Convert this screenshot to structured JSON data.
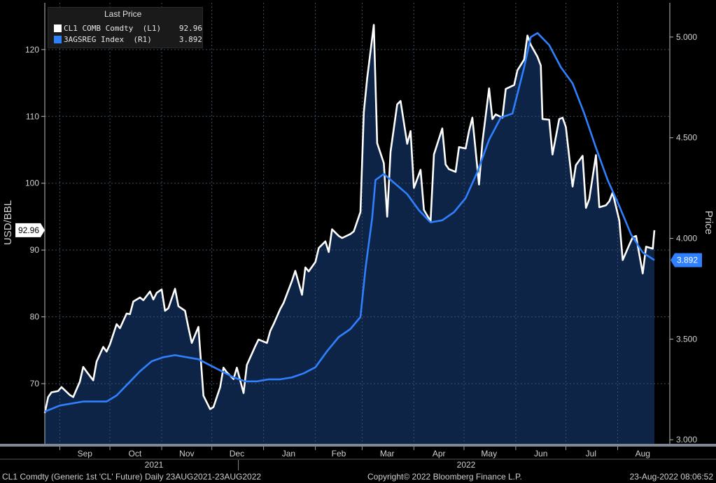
{
  "legend": {
    "title": "Last Price",
    "items": [
      {
        "name": "CL1 COMB Comdty  (L1)",
        "value": "92.96",
        "color": "#ffffff"
      },
      {
        "name": "3AGSREG Index  (R1)",
        "value": "3.892",
        "color": "#2f80ff"
      }
    ]
  },
  "footer": {
    "left": "CL1 Comdty (Generic 1st 'CL' Future)  Daily 23AUG2021-23AUG2022",
    "center": "Copyright© 2022 Bloomberg Finance L.P.",
    "right": "23-Aug-2022 08:06:52"
  },
  "chart_data": {
    "type": "line",
    "xlabel": "",
    "x_months": [
      "Sep",
      "Oct",
      "Nov",
      "Dec",
      "Jan",
      "Feb",
      "Mar",
      "Apr",
      "May",
      "Jun",
      "Jul",
      "Aug"
    ],
    "x_years": [
      "2021",
      "2022"
    ],
    "x_start": "2021-08-23",
    "x_end": "2022-08-23",
    "left_axis": {
      "label": "USD/BBL",
      "ticks": [
        70,
        80,
        90,
        100,
        110,
        120
      ],
      "ylim": [
        61,
        127
      ],
      "last_value_label": "92.96"
    },
    "right_axis": {
      "label": "Price",
      "ticks": [
        "3.000",
        "3.500",
        "4.000",
        "4.500",
        "5.000"
      ],
      "ylim": [
        2.98,
        5.17
      ],
      "last_value_label": "3.892"
    },
    "series": [
      {
        "name": "CL1 COMB Comdty",
        "axis": "left",
        "color": "#ffffff",
        "points": [
          [
            "2021-08-23",
            65.6
          ],
          [
            "2021-08-25",
            68.0
          ],
          [
            "2021-08-27",
            68.7
          ],
          [
            "2021-08-31",
            68.9
          ],
          [
            "2021-09-02",
            69.5
          ],
          [
            "2021-09-07",
            68.3
          ],
          [
            "2021-09-09",
            68.0
          ],
          [
            "2021-09-13",
            70.3
          ],
          [
            "2021-09-15",
            72.5
          ],
          [
            "2021-09-17",
            71.8
          ],
          [
            "2021-09-21",
            70.5
          ],
          [
            "2021-09-23",
            73.3
          ],
          [
            "2021-09-27",
            75.5
          ],
          [
            "2021-09-29",
            74.8
          ],
          [
            "2021-10-01",
            75.9
          ],
          [
            "2021-10-05",
            78.9
          ],
          [
            "2021-10-07",
            78.3
          ],
          [
            "2021-10-11",
            80.5
          ],
          [
            "2021-10-13",
            80.4
          ],
          [
            "2021-10-15",
            82.3
          ],
          [
            "2021-10-19",
            82.9
          ],
          [
            "2021-10-21",
            82.5
          ],
          [
            "2021-10-25",
            83.8
          ],
          [
            "2021-10-27",
            82.6
          ],
          [
            "2021-10-29",
            83.6
          ],
          [
            "2021-11-01",
            84.1
          ],
          [
            "2021-11-03",
            80.9
          ],
          [
            "2021-11-05",
            81.3
          ],
          [
            "2021-11-09",
            84.2
          ],
          [
            "2021-11-11",
            81.6
          ],
          [
            "2021-11-15",
            80.9
          ],
          [
            "2021-11-17",
            78.4
          ],
          [
            "2021-11-19",
            76.1
          ],
          [
            "2021-11-23",
            78.5
          ],
          [
            "2021-11-26",
            68.2
          ],
          [
            "2021-11-30",
            66.2
          ],
          [
            "2021-12-02",
            66.5
          ],
          [
            "2021-12-06",
            69.5
          ],
          [
            "2021-12-08",
            72.4
          ],
          [
            "2021-12-10",
            71.7
          ],
          [
            "2021-12-14",
            70.7
          ],
          [
            "2021-12-16",
            72.4
          ],
          [
            "2021-12-20",
            68.6
          ],
          [
            "2021-12-22",
            72.8
          ],
          [
            "2021-12-27",
            75.6
          ],
          [
            "2021-12-29",
            76.6
          ],
          [
            "2022-01-03",
            76.1
          ],
          [
            "2022-01-05",
            77.9
          ],
          [
            "2022-01-07",
            78.9
          ],
          [
            "2022-01-11",
            81.2
          ],
          [
            "2022-01-13",
            82.1
          ],
          [
            "2022-01-18",
            85.4
          ],
          [
            "2022-01-20",
            86.9
          ],
          [
            "2022-01-24",
            83.3
          ],
          [
            "2022-01-26",
            87.4
          ],
          [
            "2022-01-28",
            86.8
          ],
          [
            "2022-02-01",
            88.2
          ],
          [
            "2022-02-03",
            90.3
          ],
          [
            "2022-02-07",
            91.3
          ],
          [
            "2022-02-09",
            89.7
          ],
          [
            "2022-02-11",
            93.1
          ],
          [
            "2022-02-15",
            92.1
          ],
          [
            "2022-02-17",
            91.8
          ],
          [
            "2022-02-22",
            92.4
          ],
          [
            "2022-02-24",
            92.8
          ],
          [
            "2022-02-28",
            95.7
          ],
          [
            "2022-03-02",
            110.6
          ],
          [
            "2022-03-04",
            115.7
          ],
          [
            "2022-03-08",
            123.7
          ],
          [
            "2022-03-10",
            106.0
          ],
          [
            "2022-03-14",
            103.0
          ],
          [
            "2022-03-16",
            95.0
          ],
          [
            "2022-03-18",
            104.7
          ],
          [
            "2022-03-22",
            111.8
          ],
          [
            "2022-03-24",
            112.3
          ],
          [
            "2022-03-28",
            105.9
          ],
          [
            "2022-03-30",
            107.8
          ],
          [
            "2022-04-01",
            99.3
          ],
          [
            "2022-04-05",
            102.0
          ],
          [
            "2022-04-07",
            96.0
          ],
          [
            "2022-04-11",
            94.3
          ],
          [
            "2022-04-13",
            104.3
          ],
          [
            "2022-04-18",
            108.2
          ],
          [
            "2022-04-20",
            102.8
          ],
          [
            "2022-04-22",
            102.1
          ],
          [
            "2022-04-26",
            101.7
          ],
          [
            "2022-04-28",
            105.4
          ],
          [
            "2022-05-02",
            105.2
          ],
          [
            "2022-05-04",
            107.8
          ],
          [
            "2022-05-06",
            109.8
          ],
          [
            "2022-05-10",
            99.8
          ],
          [
            "2022-05-12",
            106.1
          ],
          [
            "2022-05-16",
            114.2
          ],
          [
            "2022-05-18",
            109.6
          ],
          [
            "2022-05-20",
            110.3
          ],
          [
            "2022-05-24",
            109.8
          ],
          [
            "2022-05-26",
            114.1
          ],
          [
            "2022-05-31",
            114.7
          ],
          [
            "2022-06-02",
            116.9
          ],
          [
            "2022-06-06",
            118.5
          ],
          [
            "2022-06-08",
            122.1
          ],
          [
            "2022-06-10",
            120.7
          ],
          [
            "2022-06-14",
            118.9
          ],
          [
            "2022-06-16",
            117.6
          ],
          [
            "2022-06-17",
            109.6
          ],
          [
            "2022-06-21",
            109.5
          ],
          [
            "2022-06-23",
            104.3
          ],
          [
            "2022-06-27",
            109.6
          ],
          [
            "2022-06-29",
            109.8
          ],
          [
            "2022-07-01",
            108.4
          ],
          [
            "2022-07-05",
            99.5
          ],
          [
            "2022-07-07",
            102.7
          ],
          [
            "2022-07-11",
            104.1
          ],
          [
            "2022-07-13",
            96.3
          ],
          [
            "2022-07-15",
            97.6
          ],
          [
            "2022-07-19",
            104.2
          ],
          [
            "2022-07-21",
            96.4
          ],
          [
            "2022-07-25",
            96.7
          ],
          [
            "2022-07-27",
            97.3
          ],
          [
            "2022-07-29",
            98.6
          ],
          [
            "2022-08-02",
            94.4
          ],
          [
            "2022-08-04",
            88.5
          ],
          [
            "2022-08-08",
            90.8
          ],
          [
            "2022-08-10",
            91.9
          ],
          [
            "2022-08-12",
            92.1
          ],
          [
            "2022-08-16",
            86.5
          ],
          [
            "2022-08-18",
            90.5
          ],
          [
            "2022-08-22",
            90.2
          ],
          [
            "2022-08-23",
            92.96
          ]
        ]
      },
      {
        "name": "3AGSREG Index",
        "axis": "right",
        "color": "#2f80ff",
        "points": [
          [
            "2021-08-23",
            3.14
          ],
          [
            "2021-09-01",
            3.17
          ],
          [
            "2021-09-15",
            3.19
          ],
          [
            "2021-09-29",
            3.19
          ],
          [
            "2021-10-05",
            3.22
          ],
          [
            "2021-10-12",
            3.28
          ],
          [
            "2021-10-19",
            3.34
          ],
          [
            "2021-10-26",
            3.39
          ],
          [
            "2021-11-02",
            3.41
          ],
          [
            "2021-11-09",
            3.42
          ],
          [
            "2021-11-16",
            3.41
          ],
          [
            "2021-11-23",
            3.4
          ],
          [
            "2021-11-30",
            3.37
          ],
          [
            "2021-12-07",
            3.34
          ],
          [
            "2021-12-14",
            3.31
          ],
          [
            "2021-12-21",
            3.29
          ],
          [
            "2021-12-28",
            3.29
          ],
          [
            "2022-01-04",
            3.3
          ],
          [
            "2022-01-11",
            3.3
          ],
          [
            "2022-01-18",
            3.31
          ],
          [
            "2022-01-25",
            3.33
          ],
          [
            "2022-02-01",
            3.36
          ],
          [
            "2022-02-08",
            3.44
          ],
          [
            "2022-02-15",
            3.51
          ],
          [
            "2022-02-22",
            3.55
          ],
          [
            "2022-02-28",
            3.61
          ],
          [
            "2022-03-03",
            3.85
          ],
          [
            "2022-03-07",
            4.1
          ],
          [
            "2022-03-09",
            4.29
          ],
          [
            "2022-03-14",
            4.32
          ],
          [
            "2022-03-21",
            4.27
          ],
          [
            "2022-03-28",
            4.22
          ],
          [
            "2022-04-04",
            4.14
          ],
          [
            "2022-04-11",
            4.08
          ],
          [
            "2022-04-18",
            4.09
          ],
          [
            "2022-04-25",
            4.13
          ],
          [
            "2022-05-02",
            4.2
          ],
          [
            "2022-05-09",
            4.33
          ],
          [
            "2022-05-16",
            4.49
          ],
          [
            "2022-05-23",
            4.6
          ],
          [
            "2022-05-30",
            4.62
          ],
          [
            "2022-06-06",
            4.85
          ],
          [
            "2022-06-10",
            5.0
          ],
          [
            "2022-06-14",
            5.02
          ],
          [
            "2022-06-21",
            4.96
          ],
          [
            "2022-06-28",
            4.85
          ],
          [
            "2022-07-05",
            4.77
          ],
          [
            "2022-07-12",
            4.62
          ],
          [
            "2022-07-19",
            4.45
          ],
          [
            "2022-07-26",
            4.29
          ],
          [
            "2022-08-02",
            4.16
          ],
          [
            "2022-08-09",
            4.02
          ],
          [
            "2022-08-16",
            3.93
          ],
          [
            "2022-08-23",
            3.892
          ]
        ]
      }
    ]
  }
}
